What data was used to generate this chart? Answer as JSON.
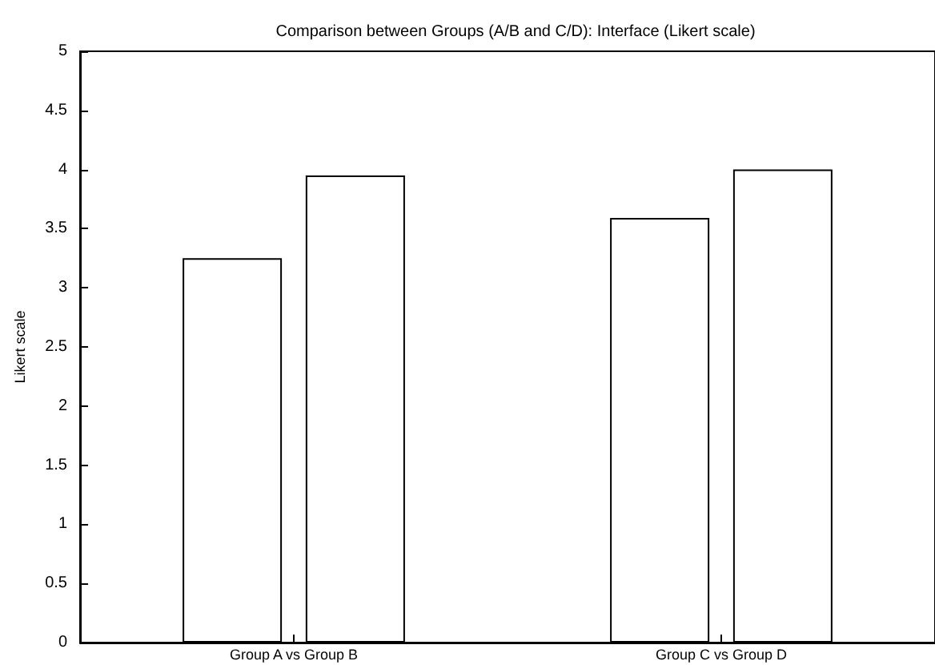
{
  "chart_data": {
    "type": "bar",
    "title": "Comparison between Groups (A/B and C/D): Interface (Likert scale)",
    "ylabel": "Likert scale",
    "categories": [
      "Group A vs Group B",
      "Group C vs Group D"
    ],
    "series": [
      {
        "color": "#ffffff",
        "values": [
          3.25,
          3.59
        ]
      },
      {
        "color": "#ffffff",
        "values": [
          3.95,
          4.0
        ]
      }
    ],
    "ylim": [
      0,
      5
    ],
    "yticks": [
      0,
      0.5,
      1,
      1.5,
      2,
      2.5,
      3,
      3.5,
      4,
      4.5,
      5
    ],
    "grid": false
  }
}
